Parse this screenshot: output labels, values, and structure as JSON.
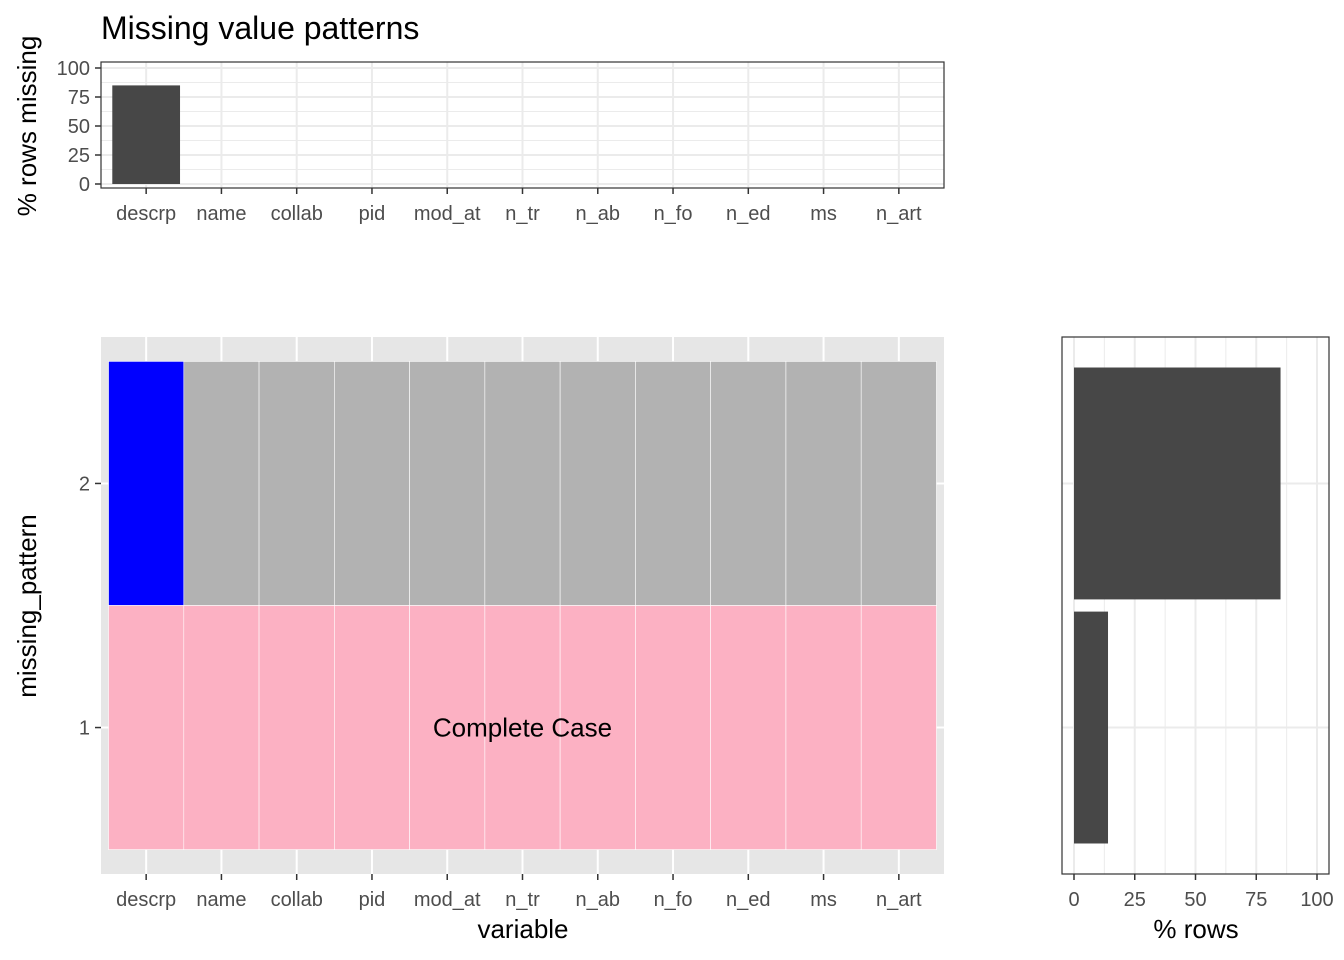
{
  "colors": {
    "bar": "#474747",
    "missing_cell": "#0000ff",
    "present_cell": "#b2b2b2",
    "complete_case_cell": "#fcb1c3",
    "panel_gray": "#e6e6e6",
    "grid_light": "#ebebeb",
    "tick_text": "#4d4d4d"
  },
  "chart_data": [
    {
      "type": "bar",
      "title": "Missing value patterns",
      "xlabel": "",
      "ylabel": "% rows missing",
      "categories": [
        "descrp",
        "name",
        "collab",
        "pid",
        "mod_at",
        "n_tr",
        "n_ab",
        "n_fo",
        "n_ed",
        "ms",
        "n_art"
      ],
      "values": [
        85,
        0,
        0,
        0,
        0,
        0,
        0,
        0,
        0,
        0,
        0
      ],
      "ylim": [
        0,
        100
      ],
      "yticks": [
        "0",
        "25",
        "50",
        "75",
        "100"
      ],
      "grid": true
    },
    {
      "type": "heatmap",
      "xlabel": "variable",
      "ylabel": "missing_pattern",
      "categories": [
        "descrp",
        "name",
        "collab",
        "pid",
        "mod_at",
        "n_tr",
        "n_ab",
        "n_fo",
        "n_ed",
        "ms",
        "n_art"
      ],
      "patterns": [
        {
          "label": "2",
          "missing": [
            true,
            false,
            false,
            false,
            false,
            false,
            false,
            false,
            false,
            false,
            false
          ],
          "complete_case": false
        },
        {
          "label": "1",
          "missing": [
            false,
            false,
            false,
            false,
            false,
            false,
            false,
            false,
            false,
            false,
            false
          ],
          "complete_case": true
        }
      ],
      "annotation": "Complete Case",
      "grid": true
    },
    {
      "type": "bar",
      "orientation": "horizontal",
      "xlabel": "% rows",
      "ylabel": "",
      "categories": [
        "2",
        "1"
      ],
      "values": [
        85,
        14
      ],
      "xlim": [
        0,
        100
      ],
      "xticks": [
        "0",
        "25",
        "50",
        "75",
        "100"
      ],
      "grid": true
    }
  ]
}
